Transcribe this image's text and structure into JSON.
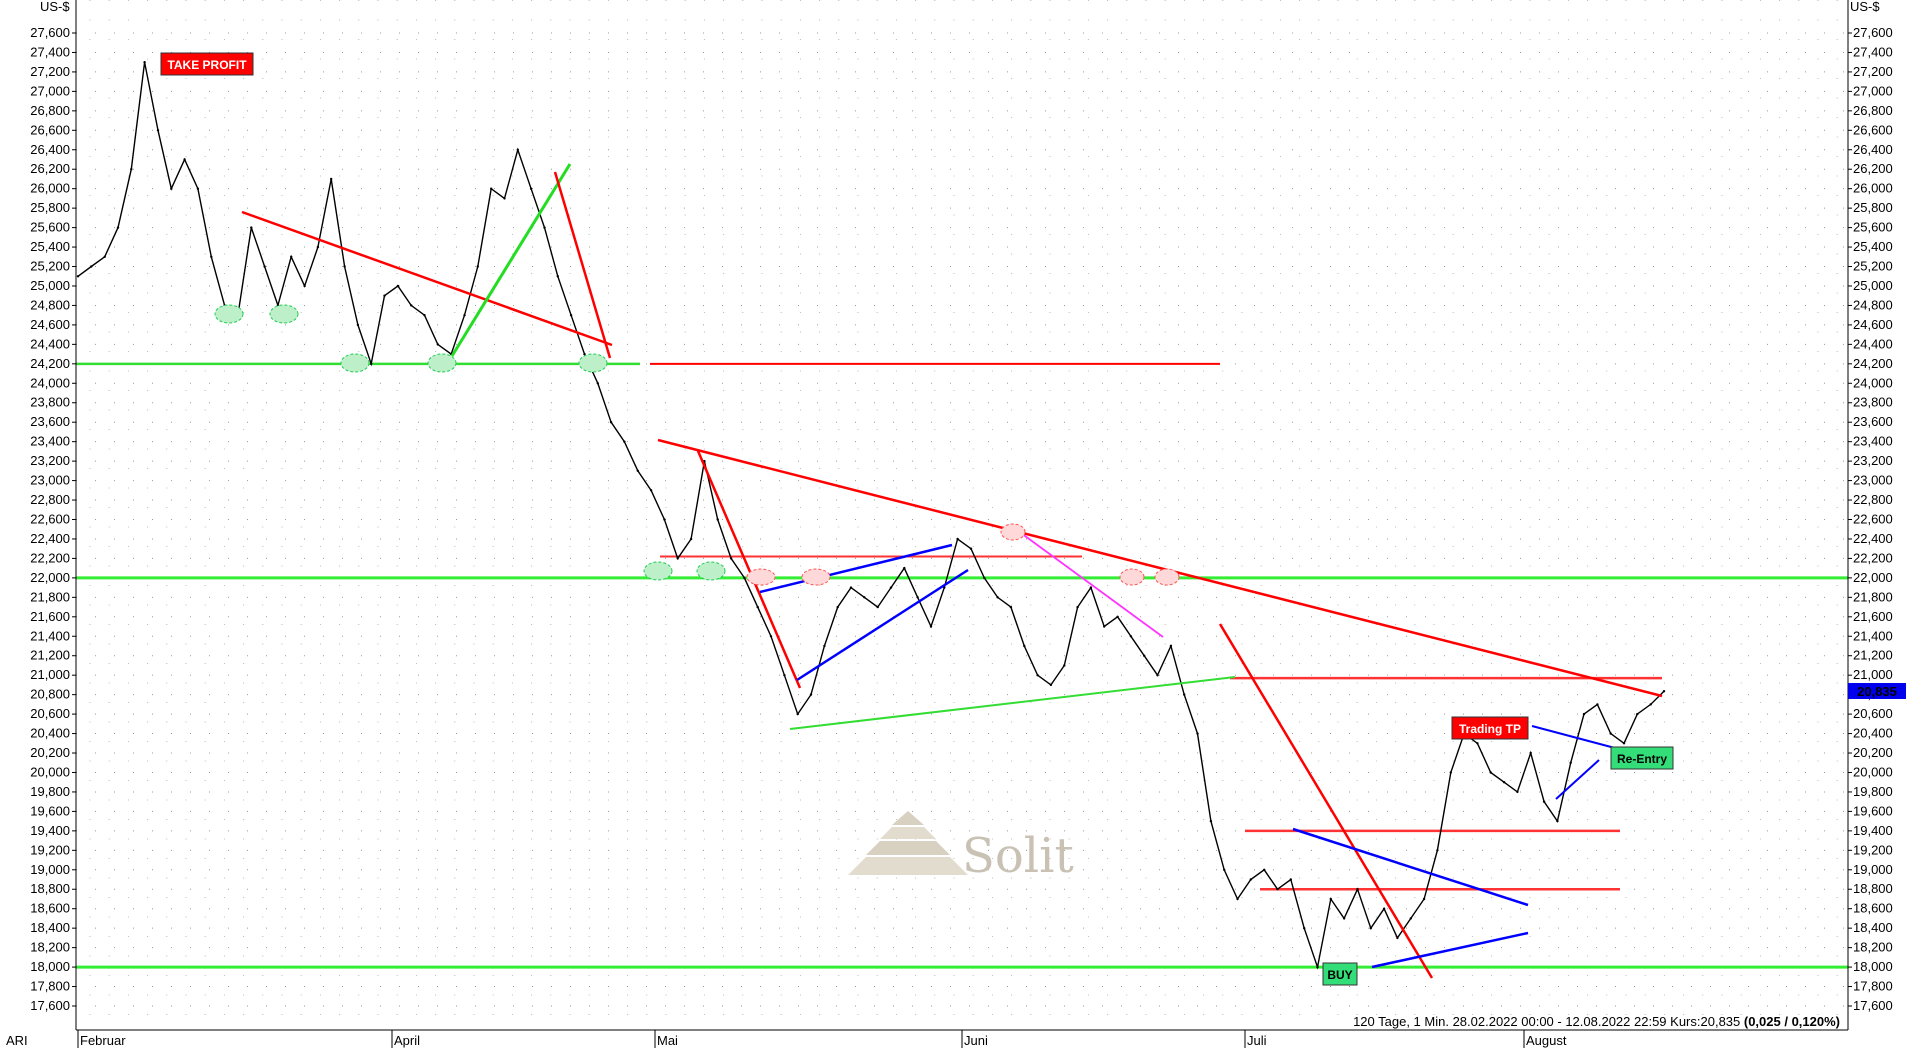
{
  "chart_data": {
    "type": "line",
    "currency_left": "US-$",
    "currency_right": "US-$",
    "symbol": "ARI",
    "ylim": [
      17600,
      27600
    ],
    "y_ticks": [
      "27,600",
      "27,400",
      "27,200",
      "27,000",
      "26,800",
      "26,600",
      "26,400",
      "26,200",
      "26,000",
      "25,800",
      "25,600",
      "25,400",
      "25,200",
      "25,000",
      "24,800",
      "24,600",
      "24,400",
      "24,200",
      "24,000",
      "23,800",
      "23,600",
      "23,400",
      "23,200",
      "23,000",
      "22,800",
      "22,600",
      "22,400",
      "22,200",
      "22,000",
      "21,800",
      "21,600",
      "21,400",
      "21,200",
      "21,000",
      "20,800",
      "20,600",
      "20,400",
      "20,200",
      "20,000",
      "19,800",
      "19,600",
      "19,400",
      "19,200",
      "19,000",
      "18,800",
      "18,600",
      "18,400",
      "18,200",
      "18,000",
      "17,800",
      "17,600"
    ],
    "x_labels": [
      "Februar",
      "April",
      "Mai",
      "Juni",
      "Juli",
      "August"
    ],
    "info_text": "120 Tage, 1 Min. 28.02.2022 00:00 - 12.08.2022 22:59  Kurs:20,835 ",
    "info_change": "(0,025 / 0,120%)",
    "last_price": "20,835",
    "last_value": 20835,
    "watermark": "Solit",
    "grid": true,
    "series": [
      {
        "color": "#000000",
        "x": [
          0,
          1,
          2,
          3,
          4,
          5,
          6,
          7,
          8,
          9,
          10,
          11,
          12,
          13,
          14,
          15,
          16,
          17,
          18,
          19,
          20,
          21,
          22,
          23,
          24,
          25,
          26,
          27,
          28,
          29,
          30,
          31,
          32,
          33,
          34,
          35,
          36,
          37,
          38,
          39,
          40,
          41,
          42,
          43,
          44,
          45,
          46,
          47,
          48,
          49,
          50,
          51,
          52,
          53,
          54,
          55,
          56,
          57,
          58,
          59,
          60,
          61,
          62,
          63,
          64,
          65,
          66,
          67,
          68,
          69,
          70,
          71,
          72,
          73,
          74,
          75,
          76,
          77,
          78,
          79,
          80,
          81,
          82,
          83,
          84,
          85,
          86,
          87,
          88,
          89,
          90,
          91,
          92,
          93,
          94,
          95,
          96,
          97,
          98,
          99,
          100,
          101,
          102,
          103,
          104,
          105,
          106,
          107,
          108,
          109,
          110,
          111,
          112,
          113,
          114,
          115,
          116,
          117,
          118,
          119
        ],
        "y": [
          25100,
          25200,
          25300,
          25600,
          26200,
          27300,
          26600,
          26000,
          26300,
          26000,
          25300,
          24800,
          24700,
          25600,
          25200,
          24800,
          25300,
          25000,
          25400,
          26100,
          25200,
          24600,
          24200,
          24900,
          25000,
          24800,
          24700,
          24400,
          24300,
          24700,
          25200,
          26000,
          25900,
          26400,
          26000,
          25600,
          25100,
          24700,
          24300,
          24000,
          23600,
          23400,
          23100,
          22900,
          22600,
          22200,
          22400,
          23200,
          22600,
          22200,
          22000,
          21700,
          21400,
          21000,
          20600,
          20800,
          21300,
          21700,
          21900,
          21800,
          21700,
          21900,
          22100,
          21800,
          21500,
          21900,
          22400,
          22300,
          22000,
          21800,
          21700,
          21300,
          21000,
          20900,
          21100,
          21700,
          21900,
          21500,
          21600,
          21400,
          21200,
          21000,
          21300,
          20800,
          20400,
          19500,
          19000,
          18700,
          18900,
          19000,
          18800,
          18900,
          18400,
          18000,
          18700,
          18500,
          18800,
          18400,
          18600,
          18300,
          18500,
          18700,
          19200,
          20000,
          20400,
          20300,
          20000,
          19900,
          19800,
          20200,
          19700,
          19500,
          20100,
          20600,
          20700,
          20400,
          20300,
          20600,
          20700,
          20835
        ]
      }
    ],
    "annotations": {
      "take_profit": "TAKE PROFIT",
      "trading_tp": "Trading TP",
      "re_entry": "Re-Entry",
      "buy": "BUY"
    },
    "horizontal_levels": [
      {
        "value": 24200,
        "color": "#33dd33"
      },
      {
        "value": 24200,
        "color": "#ff0000"
      },
      {
        "value": 22000,
        "color": "#33ee33"
      },
      {
        "value": 22220,
        "color": "#ff3333"
      },
      {
        "value": 20970,
        "color": "#ff3333"
      },
      {
        "value": 19400,
        "color": "#ff3333"
      },
      {
        "value": 18800,
        "color": "#ff3333"
      },
      {
        "value": 18000,
        "color": "#33ee33"
      }
    ],
    "colors": {
      "price": "#000000",
      "resistance": "#ff0000",
      "support": "#33ee33",
      "channel": "#0000ff",
      "magenta": "#ff33ff",
      "label_red": "#ff0000",
      "label_green": "#33dd77",
      "last_price_bg": "#0000ee"
    }
  }
}
